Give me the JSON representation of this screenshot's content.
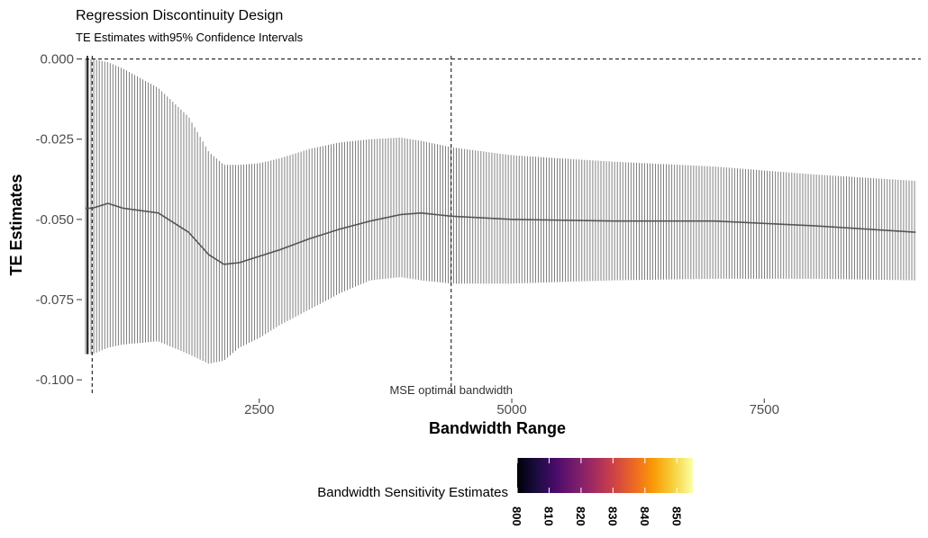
{
  "chart_data": {
    "type": "line",
    "title": "Regression Discontinuity Design",
    "subtitle": "TE Estimates with95% Confidence Intervals",
    "xlabel": "Bandwidth Range",
    "ylabel": "TE Estimates",
    "xlim": [
      780,
      9050
    ],
    "ylim": [
      -0.105,
      0.001
    ],
    "x_ticks": [
      2500,
      5000,
      7500
    ],
    "x_tick_labels": [
      "2500",
      "5000",
      "7500"
    ],
    "y_ticks": [
      0.0,
      -0.025,
      -0.05,
      -0.075,
      -0.1
    ],
    "y_tick_labels": [
      "0.000",
      "-0.025",
      "-0.050",
      "-0.075",
      "-0.100"
    ],
    "reference_lines": {
      "horizontal_y": 0.0,
      "vertical_x": [
        845,
        4400
      ],
      "vertical_label": "MSE optimal bandwidth"
    },
    "grid": false,
    "errorbar_color": "#555555",
    "line_color": "#555555",
    "series": [
      {
        "x": [
          780,
          850,
          1000,
          1150,
          1500,
          1800,
          2000,
          2150,
          2300,
          2500,
          2700,
          3000,
          3300,
          3600,
          3900,
          4100,
          4400,
          5000,
          6000,
          7000,
          8000,
          9000
        ],
        "y": [
          -0.0465,
          -0.0465,
          -0.045,
          -0.0465,
          -0.048,
          -0.054,
          -0.061,
          -0.064,
          -0.0635,
          -0.0615,
          -0.0595,
          -0.056,
          -0.053,
          -0.0505,
          -0.0485,
          -0.048,
          -0.049,
          -0.05,
          -0.0505,
          -0.0505,
          -0.052,
          -0.054
        ],
        "lower": [
          -0.092,
          -0.092,
          -0.09,
          -0.089,
          -0.088,
          -0.092,
          -0.095,
          -0.094,
          -0.09,
          -0.087,
          -0.083,
          -0.078,
          -0.073,
          -0.069,
          -0.068,
          -0.069,
          -0.07,
          -0.07,
          -0.069,
          -0.0685,
          -0.0685,
          -0.069
        ],
        "upper": [
          0.0,
          0.0,
          -0.001,
          -0.003,
          -0.009,
          -0.018,
          -0.029,
          -0.033,
          -0.033,
          -0.0325,
          -0.031,
          -0.028,
          -0.026,
          -0.025,
          -0.0245,
          -0.0255,
          -0.0275,
          -0.03,
          -0.032,
          -0.0335,
          -0.036,
          -0.038
        ]
      }
    ],
    "legend": {
      "title": "Bandwidth Sensitivity Estimates",
      "position": "bottom",
      "range": [
        800,
        855
      ],
      "ticks": [
        800,
        810,
        820,
        830,
        840,
        850
      ],
      "colors": [
        "#000004",
        "#1b0c41",
        "#4a0c6b",
        "#781c6d",
        "#a52c60",
        "#cf4446",
        "#ed6925",
        "#fb9b06",
        "#f7d13d",
        "#fcffa4"
      ]
    }
  }
}
